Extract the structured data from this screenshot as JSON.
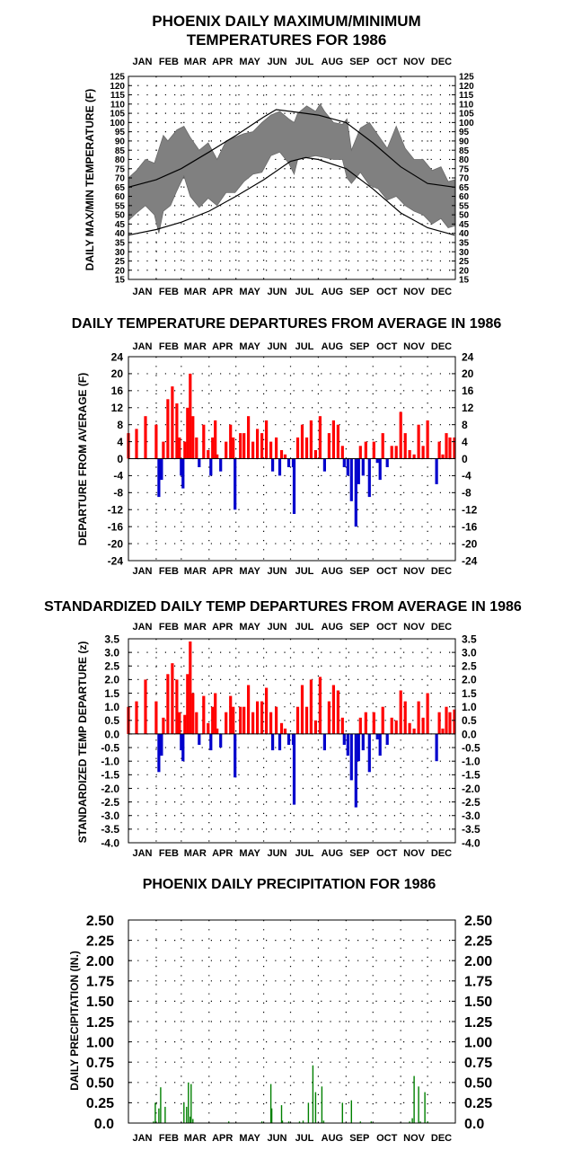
{
  "months": [
    "JAN",
    "FEB",
    "MAR",
    "APR",
    "MAY",
    "JUN",
    "JUL",
    "AUG",
    "SEP",
    "OCT",
    "NOV",
    "DEC"
  ],
  "colors": {
    "positive": "#ff0000",
    "negative": "#0000cc",
    "precip": "#008000",
    "band": "#808080",
    "line": "#000000"
  },
  "chart_data": [
    {
      "id": "maxmin",
      "type": "area",
      "title": "PHOENIX DAILY MAXIMUM/MINIMUM",
      "title2": "TEMPERATURES FOR 1986",
      "ylabel": "DAILY MAX/MIN TEMPERATURE (F)",
      "ylim": [
        15,
        125
      ],
      "ytick_labels": [
        "15",
        "20",
        "25",
        "30",
        "35",
        "40",
        "45",
        "50",
        "55",
        "60",
        "65",
        "70",
        "75",
        "80",
        "85",
        "90",
        "95",
        "100",
        "105",
        "110",
        "115",
        "120",
        "125"
      ],
      "grid": "dotted",
      "normal_max": {
        "x": [
          1,
          32,
          60,
          91,
          121,
          152,
          166,
          182,
          213,
          244,
          274,
          305,
          335,
          365
        ],
        "y": [
          65,
          69,
          75,
          84,
          93,
          103,
          107,
          106,
          104,
          100,
          89,
          76,
          67,
          65
        ]
      },
      "normal_min": {
        "x": [
          1,
          32,
          60,
          91,
          121,
          152,
          182,
          199,
          213,
          244,
          274,
          305,
          335,
          365
        ],
        "y": [
          39,
          42,
          46,
          52,
          60,
          69,
          79,
          81,
          80,
          75,
          64,
          51,
          43,
          39
        ]
      },
      "daily_max": {
        "x": [
          1,
          10,
          20,
          30,
          40,
          45,
          55,
          63,
          70,
          80,
          90,
          100,
          110,
          120,
          130,
          140,
          150,
          160,
          170,
          180,
          186,
          190,
          200,
          210,
          215,
          220,
          230,
          240,
          245,
          250,
          260,
          270,
          280,
          290,
          300,
          310,
          320,
          330,
          340,
          350,
          358,
          365
        ],
        "y": [
          70,
          74,
          80,
          78,
          93,
          90,
          96,
          98,
          92,
          85,
          89,
          80,
          90,
          92,
          94,
          95,
          100,
          104,
          106,
          102,
          100,
          105,
          109,
          106,
          110,
          106,
          100,
          99,
          102,
          85,
          97,
          100,
          93,
          86,
          98,
          86,
          80,
          80,
          74,
          76,
          68,
          69
        ]
      },
      "daily_min": {
        "x": [
          1,
          10,
          20,
          30,
          35,
          40,
          48,
          55,
          63,
          70,
          80,
          90,
          100,
          110,
          120,
          130,
          140,
          150,
          160,
          170,
          180,
          186,
          190,
          200,
          210,
          220,
          230,
          240,
          245,
          250,
          260,
          270,
          280,
          290,
          300,
          310,
          320,
          330,
          340,
          350,
          358,
          365
        ],
        "y": [
          47,
          51,
          55,
          50,
          40,
          52,
          55,
          63,
          71,
          60,
          54,
          59,
          55,
          62,
          62,
          68,
          72,
          73,
          82,
          84,
          78,
          72,
          80,
          81,
          82,
          81,
          80,
          80,
          70,
          67,
          73,
          66,
          64,
          58,
          60,
          55,
          52,
          50,
          45,
          48,
          43,
          44
        ]
      }
    },
    {
      "id": "departure",
      "type": "bar",
      "title": "DAILY TEMPERATURE DEPARTURES FROM AVERAGE IN 1986",
      "ylabel": "DEPARTURE FROM AVERAGE  (F)",
      "ylim": [
        -24,
        24
      ],
      "ytick_labels": [
        "-24",
        "-20",
        "-16",
        "-12",
        "-8",
        "-4",
        "0",
        "4",
        "8",
        "12",
        "16",
        "20",
        "24"
      ],
      "grid": "dotted",
      "x": [
        1,
        10,
        20,
        32,
        35,
        38,
        40,
        45,
        50,
        55,
        58,
        60,
        62,
        64,
        67,
        70,
        73,
        77,
        80,
        85,
        90,
        93,
        95,
        98,
        100,
        104,
        110,
        115,
        118,
        120,
        126,
        130,
        135,
        140,
        145,
        150,
        155,
        160,
        162,
        166,
        170,
        172,
        176,
        180,
        185,
        186,
        190,
        195,
        200,
        205,
        210,
        215,
        220,
        225,
        230,
        235,
        240,
        242,
        246,
        250,
        255,
        258,
        260,
        263,
        266,
        270,
        275,
        279,
        282,
        285,
        290,
        295,
        300,
        305,
        310,
        315,
        320,
        325,
        330,
        335,
        340,
        345,
        348,
        352,
        356,
        360,
        365
      ],
      "values": [
        6,
        7,
        10,
        8,
        -9,
        -5,
        4,
        14,
        17,
        13,
        5,
        -4,
        -7,
        4,
        12,
        20,
        10,
        5,
        -2,
        8,
        2,
        -4,
        5,
        9,
        1,
        -3,
        4,
        8,
        5,
        -12,
        6,
        6,
        10,
        4,
        7,
        6,
        9,
        4,
        -3,
        5,
        -4,
        2,
        1,
        -2,
        -2,
        -13,
        5,
        8,
        5,
        9,
        2,
        10,
        -3,
        6,
        9,
        8,
        3,
        -2,
        -4,
        -10,
        -16,
        -6,
        3,
        -4,
        4,
        -9,
        4,
        -1,
        -5,
        6,
        -2,
        3,
        3,
        11,
        6,
        2,
        1,
        8,
        3,
        9,
        0,
        -6,
        4,
        1,
        6,
        5,
        5
      ]
    },
    {
      "id": "standardized",
      "type": "bar",
      "title": "STANDARDIZED DAILY TEMP DEPARTURES FROM AVERAGE IN 1986",
      "ylabel": "STANDARDIZED TEMP DEPARTURE  (z)",
      "ylim": [
        -4,
        3.5
      ],
      "ytick_labels": [
        "-4.0",
        "-3.5",
        "-3.0",
        "-2.5",
        "-2.0",
        "-1.5",
        "-1.0",
        "-0.5",
        "0.0",
        "0.5",
        "1.0",
        "1.5",
        "2.0",
        "2.5",
        "3.0",
        "3.5"
      ],
      "grid": "dotted",
      "x": [
        1,
        10,
        20,
        32,
        35,
        38,
        40,
        45,
        50,
        55,
        58,
        60,
        62,
        64,
        67,
        70,
        73,
        77,
        80,
        85,
        90,
        93,
        95,
        98,
        100,
        104,
        110,
        115,
        118,
        120,
        126,
        130,
        135,
        140,
        145,
        150,
        155,
        160,
        162,
        166,
        170,
        172,
        176,
        180,
        185,
        186,
        190,
        195,
        200,
        205,
        210,
        215,
        220,
        225,
        230,
        235,
        240,
        242,
        246,
        250,
        255,
        258,
        260,
        263,
        266,
        270,
        275,
        279,
        282,
        285,
        290,
        295,
        300,
        305,
        310,
        315,
        320,
        325,
        330,
        335,
        340,
        345,
        348,
        352,
        356,
        360,
        365
      ],
      "values": [
        1.0,
        1.2,
        2.0,
        1.2,
        -1.4,
        -0.8,
        0.6,
        2.2,
        2.6,
        2.0,
        0.8,
        -0.6,
        -1.0,
        0.7,
        2.2,
        3.4,
        1.5,
        0.8,
        -0.4,
        1.4,
        0.4,
        -0.6,
        1.0,
        1.5,
        0.2,
        -0.5,
        0.8,
        1.4,
        1.0,
        -1.6,
        1.0,
        1.0,
        1.8,
        0.8,
        1.2,
        1.2,
        1.7,
        0.8,
        -0.6,
        1.0,
        -0.6,
        0.4,
        0.2,
        -0.4,
        -0.4,
        -2.6,
        1.0,
        1.8,
        1.0,
        2.0,
        0.5,
        2.1,
        -0.6,
        1.2,
        1.8,
        1.6,
        0.6,
        -0.4,
        -0.8,
        -1.7,
        -2.7,
        -1.0,
        0.6,
        -0.6,
        0.8,
        -1.4,
        0.8,
        -0.2,
        -0.8,
        1.0,
        -0.4,
        0.6,
        0.5,
        1.6,
        1.2,
        0.4,
        0.2,
        1.2,
        0.6,
        1.5,
        0.0,
        -1.0,
        0.8,
        0.2,
        1.0,
        0.8,
        0.9
      ]
    },
    {
      "id": "precip",
      "type": "bar",
      "title": "PHOENIX DAILY PRECIPITATION FOR 1986",
      "ylabel": "DAILY PRECIPITATION (IN.)",
      "ylim": [
        0,
        2.5
      ],
      "ytick_labels": [
        "0.0",
        "0.25",
        "0.50",
        "0.75",
        "1.00",
        "1.25",
        "1.50",
        "1.75",
        "2.00",
        "2.25",
        "2.50"
      ],
      "grid": "dotted",
      "x": [
        29,
        31,
        35,
        37,
        42,
        63,
        66,
        68,
        70,
        71,
        73,
        113,
        150,
        160,
        161,
        172,
        173,
        180,
        192,
        196,
        202,
        207,
        210,
        217,
        219,
        240,
        250,
        260,
        272,
        315,
        318,
        320,
        325,
        327,
        332,
        335
      ],
      "values": [
        0.02,
        0.25,
        0.18,
        0.44,
        0.2,
        0.25,
        0.2,
        0.5,
        0.08,
        0.48,
        0.05,
        0.02,
        0.02,
        0.48,
        0.18,
        0.22,
        0.03,
        0.02,
        0.02,
        0.03,
        0.25,
        0.71,
        0.38,
        0.45,
        0.03,
        0.25,
        0.28,
        0.02,
        0.02,
        0.02,
        0.06,
        0.58,
        0.45,
        0.02,
        0.38,
        0.02
      ]
    }
  ]
}
